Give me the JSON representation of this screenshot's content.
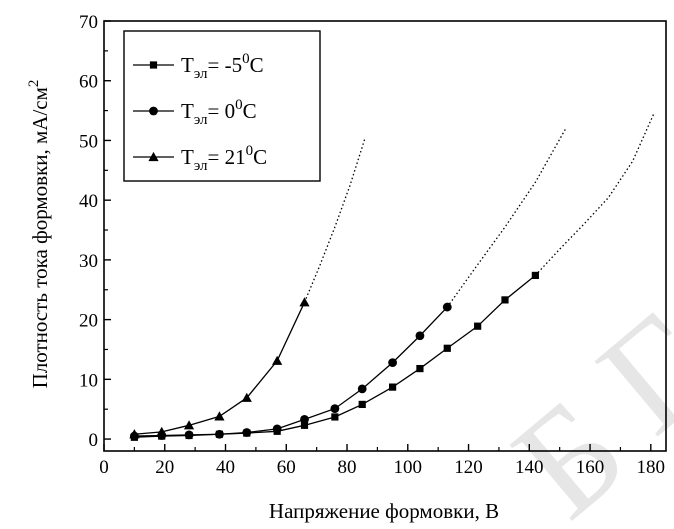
{
  "chart_data": {
    "type": "line",
    "title": "",
    "xlabel": "Напряжение формовки, В",
    "ylabel": "Плотность тока формовки, мА/см",
    "ylabel_sup": "2",
    "xlim": [
      0,
      185
    ],
    "ylim": [
      -2,
      70
    ],
    "x_ticks": [
      0,
      20,
      40,
      60,
      80,
      100,
      120,
      140,
      160,
      180
    ],
    "y_ticks": [
      0,
      10,
      20,
      30,
      40,
      50,
      60,
      70
    ],
    "grid": false,
    "legend_position": "top-left",
    "series": [
      {
        "name": "T",
        "sub": "эл",
        "value": "= -5",
        "sup": "0",
        "unit": "C",
        "marker": "square",
        "color": "#000000",
        "x": [
          10,
          19,
          28,
          38,
          47,
          57,
          66,
          76,
          85,
          95,
          104,
          113,
          123,
          132,
          142
        ],
        "y": [
          0.3,
          0.5,
          0.6,
          0.8,
          1.0,
          1.3,
          2.3,
          3.7,
          5.8,
          8.7,
          11.8,
          15.2,
          18.9,
          23.3,
          27.4
        ],
        "extrapolation": {
          "x": [
            142,
            150,
            158,
            166,
            174,
            181
          ],
          "y": [
            27.4,
            31.8,
            36.0,
            40.4,
            46.5,
            54.5
          ]
        }
      },
      {
        "name": "T",
        "sub": "эл",
        "value": "= 0",
        "sup": "0",
        "unit": "C",
        "marker": "circle",
        "color": "#000000",
        "x": [
          10,
          19,
          28,
          38,
          47,
          57,
          66,
          76,
          85,
          95,
          104,
          113
        ],
        "y": [
          0.5,
          0.6,
          0.7,
          0.8,
          1.1,
          1.7,
          3.3,
          5.1,
          8.4,
          12.8,
          17.3,
          22.1
        ],
        "extrapolation": {
          "x": [
            113,
            122,
            132,
            142,
            152
          ],
          "y": [
            22.1,
            28.5,
            35.5,
            43.0,
            52.0
          ]
        }
      },
      {
        "name": "T",
        "sub": "эл",
        "value": "= 21",
        "sup": "0",
        "unit": "C",
        "marker": "triangle",
        "color": "#000000",
        "x": [
          10,
          19,
          28,
          38,
          47,
          57,
          66
        ],
        "y": [
          0.8,
          1.2,
          2.3,
          3.8,
          6.9,
          13.1,
          22.9
        ],
        "extrapolation": {
          "x": [
            66,
            71,
            76,
            81,
            86
          ],
          "y": [
            22.9,
            29.0,
            35.5,
            42.5,
            50.5
          ]
        }
      }
    ]
  },
  "watermark_color": "#e6e6e6"
}
